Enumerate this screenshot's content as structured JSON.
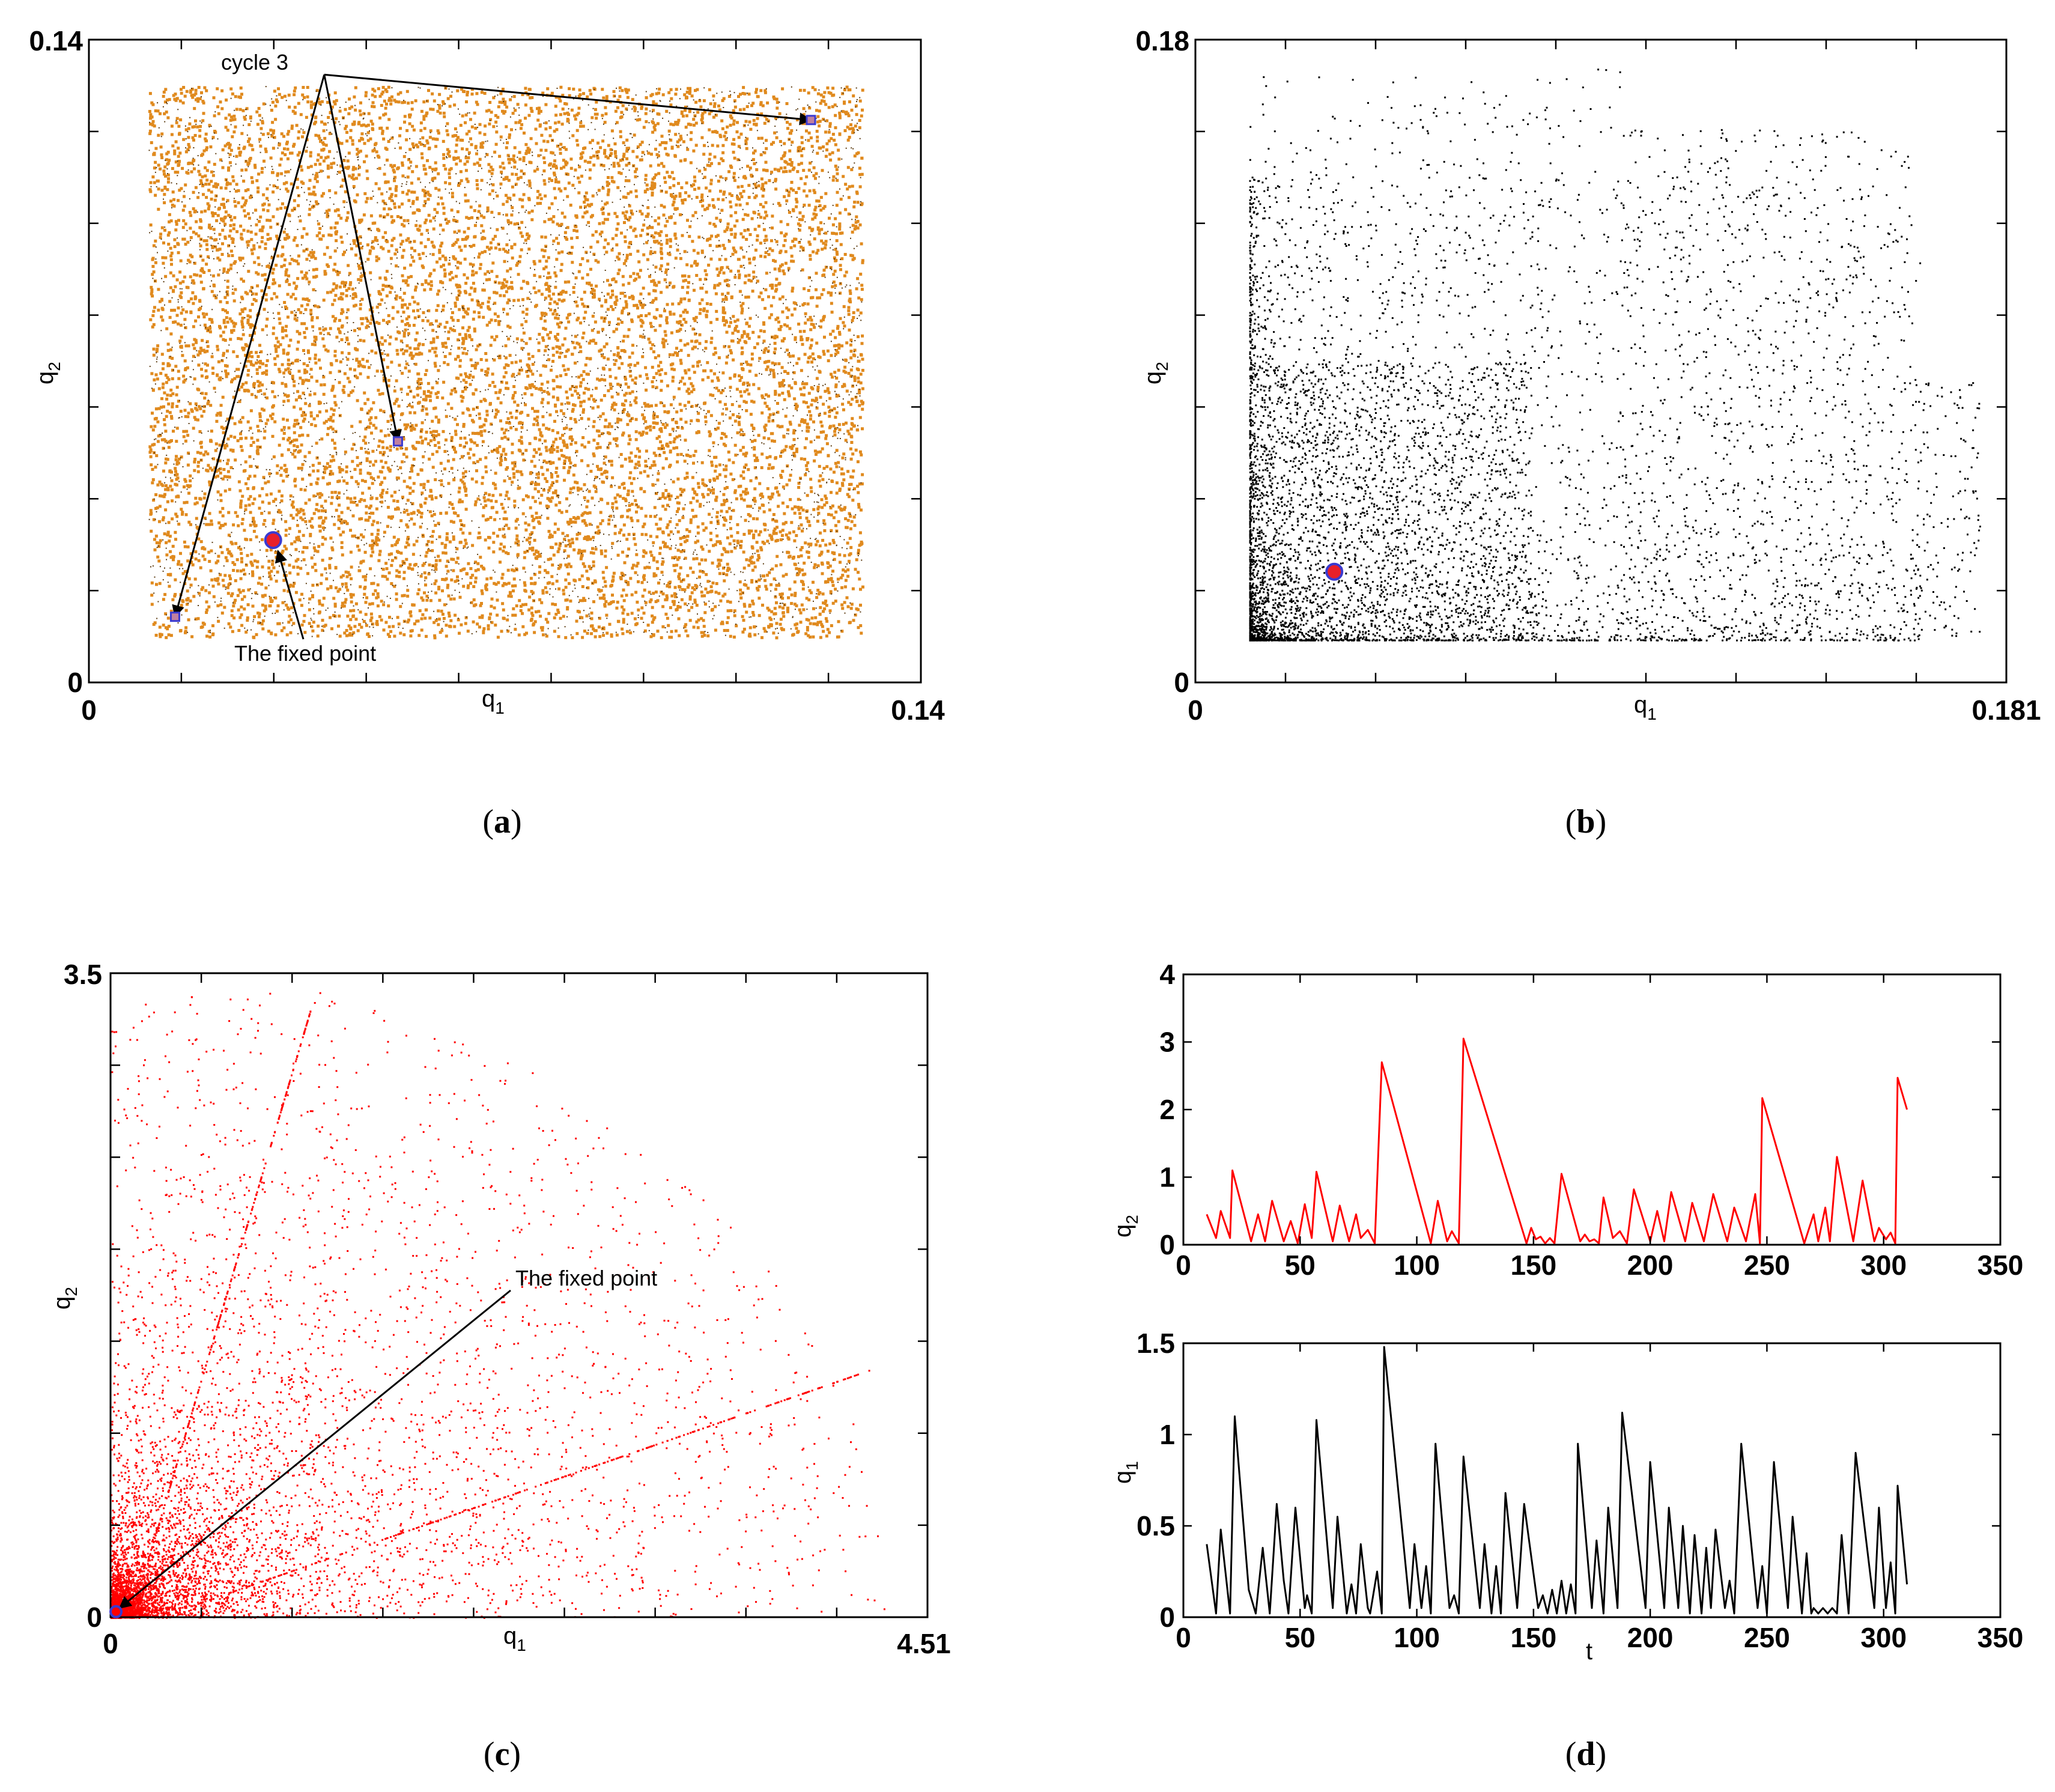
{
  "chart_data": [
    {
      "id": "a",
      "type": "scatter",
      "caption": "(a)",
      "caption_letter": "a",
      "xlabel": "q",
      "xlabel_sub": "1",
      "ylabel": "q",
      "ylabel_sub": "2",
      "xlim": [
        0,
        0.14
      ],
      "ylim": [
        0,
        0.14
      ],
      "x_tick_labels": [
        "0",
        "0.14"
      ],
      "y_tick_labels": [
        "0",
        "0.14"
      ],
      "colors": {
        "cloud": "#e08a1e",
        "cloud_dark": "#5a3a10",
        "marker_fill": "#e8202a",
        "marker_edge": "#3a3ad0",
        "square_fill": "#c080a0"
      },
      "cloud_region": {
        "x": [
          0.01,
          0.13
        ],
        "y": [
          0.01,
          0.13
        ]
      },
      "annotations": [
        {
          "text": "cycle 3",
          "label_at": [
            0.03,
            0.135
          ]
        },
        {
          "text": "The fixed point",
          "label_at": [
            0.035,
            0.004
          ]
        }
      ],
      "fixed_point": [
        0.031,
        0.031
      ],
      "cycle3_points": [
        [
          0.0145,
          0.0143
        ],
        [
          0.052,
          0.0525
        ],
        [
          0.1215,
          0.1225
        ]
      ]
    },
    {
      "id": "b",
      "type": "scatter",
      "caption": "(b)",
      "caption_letter": "b",
      "xlabel": "q",
      "xlabel_sub": "1",
      "ylabel": "q",
      "ylabel_sub": "2",
      "xlim": [
        0,
        0.181
      ],
      "ylim": [
        0,
        0.18
      ],
      "x_tick_labels": [
        "0",
        "0.181"
      ],
      "y_tick_labels": [
        "0",
        "0.18"
      ],
      "colors": {
        "points": "#000000",
        "marker_fill": "#e8202a",
        "marker_edge": "#3a3ad0"
      },
      "fixed_point": [
        0.031,
        0.031
      ]
    },
    {
      "id": "c",
      "type": "scatter",
      "caption": "(c)",
      "caption_letter": "c",
      "xlabel": "q",
      "xlabel_sub": "1",
      "ylabel": "q",
      "ylabel_sub": "2",
      "xlim": [
        0,
        4.51
      ],
      "ylim": [
        0,
        3.5
      ],
      "x_tick_labels": [
        "0",
        "4.51"
      ],
      "y_tick_labels": [
        "0",
        "3.5"
      ],
      "colors": {
        "points": "#ff0000",
        "marker_edge": "#3a3ad0"
      },
      "annotations": [
        {
          "text": "The fixed point",
          "label_at": [
            2.22,
            1.8
          ]
        }
      ],
      "fixed_point": [
        0.03,
        0.03
      ]
    },
    {
      "id": "d",
      "type": "line",
      "caption": "(d)",
      "caption_letter": "d",
      "xlabel": "t",
      "x_ticks": [
        0,
        50,
        100,
        150,
        200,
        250,
        300,
        350
      ],
      "subplots": [
        {
          "id": "d-top",
          "ylabel": "q",
          "ylabel_sub": "2",
          "ylim": [
            0,
            4
          ],
          "y_ticks": [
            0,
            1,
            2,
            3,
            4
          ],
          "color": "#ff0000",
          "series": [
            [
              10,
              0.45
            ],
            [
              14,
              0.1
            ],
            [
              16,
              0.5
            ],
            [
              20,
              0.1
            ],
            [
              21,
              1.1
            ],
            [
              29,
              0.05
            ],
            [
              32,
              0.45
            ],
            [
              35,
              0.05
            ],
            [
              38,
              0.65
            ],
            [
              43,
              0.05
            ],
            [
              46,
              0.35
            ],
            [
              49,
              0.02
            ],
            [
              52,
              0.6
            ],
            [
              55,
              0.1
            ],
            [
              57,
              1.08
            ],
            [
              64,
              0.05
            ],
            [
              67,
              0.58
            ],
            [
              71,
              0.05
            ],
            [
              74,
              0.45
            ],
            [
              76,
              0.1
            ],
            [
              79,
              0.22
            ],
            [
              82,
              0.02
            ],
            [
              85,
              2.7
            ],
            [
              106,
              0.02
            ],
            [
              109,
              0.65
            ],
            [
              113,
              0.05
            ],
            [
              115,
              0.2
            ],
            [
              118,
              0.02
            ],
            [
              120,
              3.05
            ],
            [
              147,
              0.02
            ],
            [
              149,
              0.25
            ],
            [
              151,
              0.08
            ],
            [
              153,
              0.12
            ],
            [
              155,
              0.02
            ],
            [
              157,
              0.1
            ],
            [
              159,
              0.02
            ],
            [
              162,
              1.05
            ],
            [
              170,
              0.05
            ],
            [
              172,
              0.15
            ],
            [
              174,
              0.05
            ],
            [
              176,
              0.08
            ],
            [
              178,
              0.02
            ],
            [
              180,
              0.7
            ],
            [
              184,
              0.1
            ],
            [
              187,
              0.2
            ],
            [
              190,
              0.02
            ],
            [
              193,
              0.82
            ],
            [
              200,
              0.05
            ],
            [
              203,
              0.5
            ],
            [
              206,
              0.05
            ],
            [
              209,
              0.78
            ],
            [
              215,
              0.05
            ],
            [
              218,
              0.62
            ],
            [
              223,
              0.05
            ],
            [
              227,
              0.75
            ],
            [
              233,
              0.05
            ],
            [
              236,
              0.55
            ],
            [
              241,
              0.05
            ],
            [
              245,
              0.75
            ],
            [
              247,
              0.02
            ],
            [
              248,
              2.17
            ],
            [
              266,
              0.02
            ],
            [
              270,
              0.45
            ],
            [
              272,
              0.05
            ],
            [
              275,
              0.55
            ],
            [
              277,
              0.05
            ],
            [
              280,
              1.3
            ],
            [
              287,
              0.05
            ],
            [
              291,
              0.95
            ],
            [
              296,
              0.05
            ],
            [
              298,
              0.25
            ],
            [
              301,
              0.08
            ],
            [
              303,
              0.18
            ],
            [
              305,
              0.02
            ],
            [
              306,
              2.47
            ],
            [
              310,
              2.0
            ]
          ]
        },
        {
          "id": "d-bottom",
          "ylabel": "q",
          "ylabel_sub": "1",
          "ylim": [
            0,
            1.5
          ],
          "y_ticks": [
            0,
            0.5,
            1,
            1.5
          ],
          "y_tick_labels": [
            "0",
            "0.5",
            "1",
            "1.5"
          ],
          "color": "#000000",
          "series": [
            [
              10,
              0.4
            ],
            [
              14,
              0.02
            ],
            [
              16,
              0.48
            ],
            [
              20,
              0.02
            ],
            [
              22,
              1.1
            ],
            [
              28,
              0.15
            ],
            [
              31,
              0.02
            ],
            [
              34,
              0.38
            ],
            [
              37,
              0.02
            ],
            [
              40,
              0.62
            ],
            [
              43,
              0.2
            ],
            [
              45,
              0.02
            ],
            [
              48,
              0.6
            ],
            [
              52,
              0.05
            ],
            [
              53,
              0.12
            ],
            [
              55,
              0.02
            ],
            [
              57,
              1.08
            ],
            [
              64,
              0.05
            ],
            [
              66,
              0.55
            ],
            [
              70,
              0.02
            ],
            [
              72,
              0.18
            ],
            [
              74,
              0.02
            ],
            [
              76,
              0.4
            ],
            [
              79,
              0.05
            ],
            [
              80,
              0.02
            ],
            [
              83,
              0.25
            ],
            [
              85,
              0.02
            ],
            [
              86,
              1.48
            ],
            [
              97,
              0.05
            ],
            [
              99,
              0.4
            ],
            [
              102,
              0.05
            ],
            [
              104,
              0.28
            ],
            [
              106,
              0.02
            ],
            [
              108,
              0.95
            ],
            [
              114,
              0.05
            ],
            [
              116,
              0.12
            ],
            [
              118,
              0.02
            ],
            [
              120,
              0.88
            ],
            [
              127,
              0.05
            ],
            [
              129,
              0.4
            ],
            [
              132,
              0.02
            ],
            [
              134,
              0.28
            ],
            [
              136,
              0.02
            ],
            [
              138,
              0.68
            ],
            [
              143,
              0.05
            ],
            [
              146,
              0.62
            ],
            [
              152,
              0.05
            ],
            [
              154,
              0.12
            ],
            [
              156,
              0.02
            ],
            [
              158,
              0.15
            ],
            [
              160,
              0.02
            ],
            [
              162,
              0.2
            ],
            [
              164,
              0.02
            ],
            [
              166,
              0.18
            ],
            [
              168,
              0.02
            ],
            [
              169,
              0.95
            ],
            [
              175,
              0.05
            ],
            [
              177,
              0.42
            ],
            [
              180,
              0.02
            ],
            [
              182,
              0.6
            ],
            [
              186,
              0.05
            ],
            [
              188,
              1.12
            ],
            [
              198,
              0.05
            ],
            [
              200,
              0.85
            ],
            [
              206,
              0.05
            ],
            [
              208,
              0.6
            ],
            [
              212,
              0.05
            ],
            [
              214,
              0.5
            ],
            [
              217,
              0.02
            ],
            [
              219,
              0.45
            ],
            [
              222,
              0.02
            ],
            [
              224,
              0.38
            ],
            [
              226,
              0.05
            ],
            [
              228,
              0.48
            ],
            [
              232,
              0.05
            ],
            [
              234,
              0.2
            ],
            [
              236,
              0.02
            ],
            [
              239,
              0.95
            ],
            [
              246,
              0.05
            ],
            [
              248,
              0.28
            ],
            [
              250,
              0.02
            ],
            [
              253,
              0.85
            ],
            [
              259,
              0.05
            ],
            [
              261,
              0.55
            ],
            [
              265,
              0.02
            ],
            [
              267,
              0.35
            ],
            [
              269,
              0.02
            ],
            [
              270,
              0.05
            ],
            [
              272,
              0.02
            ],
            [
              274,
              0.05
            ],
            [
              276,
              0.02
            ],
            [
              278,
              0.05
            ],
            [
              280,
              0.02
            ],
            [
              282,
              0.45
            ],
            [
              285,
              0.02
            ],
            [
              288,
              0.9
            ],
            [
              296,
              0.05
            ],
            [
              298,
              0.6
            ],
            [
              301,
              0.05
            ],
            [
              303,
              0.3
            ],
            [
              305,
              0.02
            ],
            [
              306,
              0.72
            ],
            [
              310,
              0.18
            ]
          ]
        }
      ]
    }
  ]
}
